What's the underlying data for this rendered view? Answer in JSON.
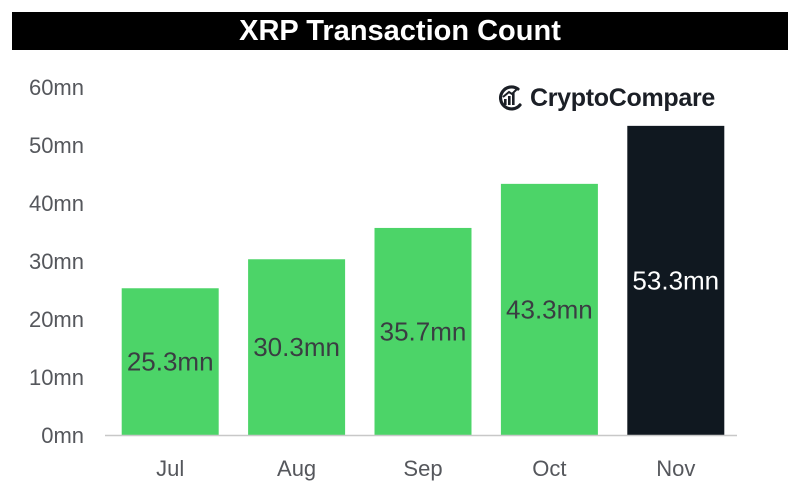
{
  "title": "XRP Transaction Count",
  "logo": {
    "text": "CryptoCompare",
    "icon": "cryptocompare-logo-icon"
  },
  "colors": {
    "bar": "#4cd468",
    "highlight": "#101820",
    "bar_label": "#3a3d42",
    "highlight_label": "#ffffff",
    "title_bg": "#000000"
  },
  "chart_data": {
    "type": "bar",
    "title": "XRP Transaction Count",
    "categories": [
      "Jul",
      "Aug",
      "Sep",
      "Oct",
      "Nov"
    ],
    "values": [
      25.3,
      30.3,
      35.7,
      43.3,
      53.3
    ],
    "value_labels": [
      "25.3mn",
      "30.3mn",
      "35.7mn",
      "43.3mn",
      "53.3mn"
    ],
    "highlight_index": 4,
    "unit": "mn",
    "ylim": [
      0,
      60
    ],
    "yticks": [
      0,
      10,
      20,
      30,
      40,
      50,
      60
    ],
    "ytick_labels": [
      "0mn",
      "10mn",
      "20mn",
      "30mn",
      "40mn",
      "50mn",
      "60mn"
    ],
    "xlabel": "",
    "ylabel": "",
    "grid": false,
    "legend": "none"
  }
}
